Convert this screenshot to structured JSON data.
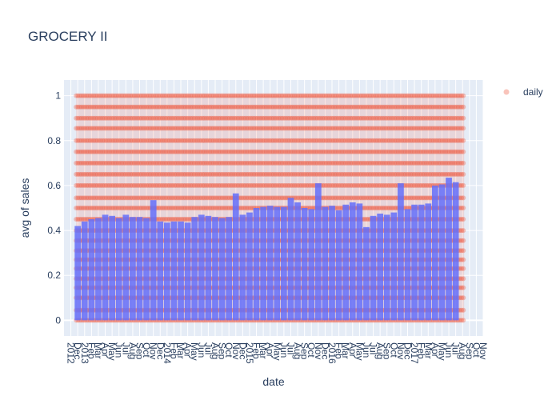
{
  "chart_data": {
    "type": "bar",
    "title": "GROCERY II",
    "xlabel": "date",
    "ylabel": "avg of sales",
    "ylim": [
      -0.07,
      1.07
    ],
    "y_ticks": [
      "0",
      "0.2",
      "0.4",
      "0.6",
      "0.8",
      "1"
    ],
    "y_tick_values": [
      0,
      0.2,
      0.4,
      0.6,
      0.8,
      1
    ],
    "x_start": "2012-12",
    "x_end": "2017-08",
    "x_tick_labels": [
      "2012",
      "Dec",
      "2013",
      "Feb",
      "Mar",
      "Apr",
      "May",
      "Jun",
      "Jul",
      "Aug",
      "Sep",
      "Oct",
      "Nov",
      "Dec",
      "2014",
      "Feb",
      "Mar",
      "Apr",
      "May",
      "Jun",
      "Jul",
      "Aug",
      "Sep",
      "Oct",
      "Nov",
      "Dec",
      "2015",
      "Feb",
      "Mar",
      "Apr",
      "May",
      "Jun",
      "Jul",
      "Aug",
      "Sep",
      "Oct",
      "Nov",
      "Dec",
      "2016",
      "Feb",
      "Mar",
      "Apr",
      "May",
      "Jun",
      "Jul",
      "Aug",
      "Sep",
      "Oct",
      "Nov",
      "Dec",
      "2017",
      "Feb",
      "Mar",
      "Apr",
      "May",
      "Jun",
      "Jul",
      "Aug",
      "Sep",
      "Oct",
      "Nov"
    ],
    "series": [
      {
        "type": "bar",
        "color": "#636efa",
        "values": [
          0.42,
          0.44,
          0.45,
          0.455,
          0.47,
          0.465,
          0.455,
          0.47,
          0.46,
          0.46,
          0.455,
          0.535,
          0.44,
          0.435,
          0.44,
          0.44,
          0.435,
          0.46,
          0.47,
          0.465,
          0.46,
          0.455,
          0.46,
          0.565,
          0.47,
          0.48,
          0.5,
          0.505,
          0.51,
          0.505,
          0.505,
          0.545,
          0.525,
          0.5,
          0.495,
          0.61,
          0.505,
          0.51,
          0.49,
          0.515,
          0.525,
          0.52,
          0.415,
          0.465,
          0.475,
          0.47,
          0.48,
          0.61,
          0.495,
          0.515,
          0.515,
          0.52,
          0.6,
          0.605,
          0.635,
          0.615
        ]
      },
      {
        "name": "daily",
        "type": "scatter",
        "color": "#ef553b",
        "opacity": 0.35,
        "y_range": [
          0,
          1
        ],
        "marker_rows": [
          0,
          0.045,
          0.1,
          0.145,
          0.185,
          0.23,
          0.27,
          0.31,
          0.355,
          0.4,
          0.45,
          0.5,
          0.545,
          0.6,
          0.65,
          0.7,
          0.75,
          0.8,
          0.855,
          0.9,
          0.95,
          1
        ]
      }
    ],
    "legend": {
      "entries": [
        "daily"
      ],
      "placement": "top-right"
    },
    "grid": true
  }
}
